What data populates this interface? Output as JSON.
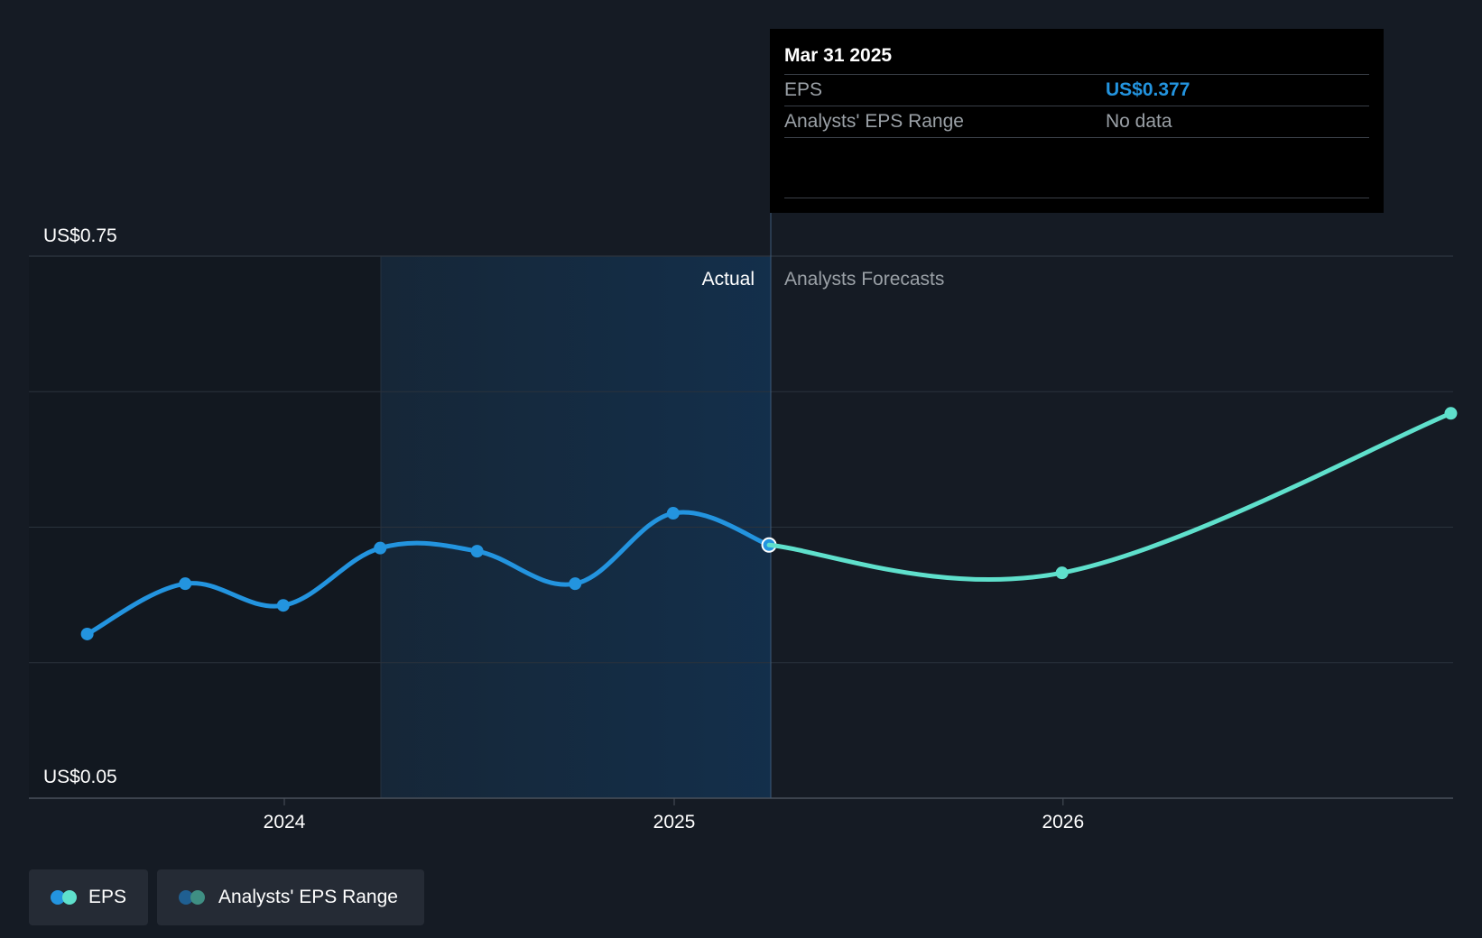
{
  "chart_data": {
    "type": "line",
    "y_labels": {
      "top": "US$0.75",
      "bottom": "US$0.05"
    },
    "ylim": [
      0.05,
      0.75
    ],
    "x_ticks": [
      "2024",
      "2025",
      "2026"
    ],
    "region_labels": {
      "actual": "Actual",
      "forecast": "Analysts Forecasts"
    },
    "grid": true,
    "series": [
      {
        "name": "EPS",
        "color": "#2394df",
        "points": [
          {
            "x": "2023-06-30",
            "y": 0.262
          },
          {
            "x": "2023-09-30",
            "y": 0.327
          },
          {
            "x": "2023-12-31",
            "y": 0.299
          },
          {
            "x": "2024-03-31",
            "y": 0.373
          },
          {
            "x": "2024-06-30",
            "y": 0.369
          },
          {
            "x": "2024-09-30",
            "y": 0.327
          },
          {
            "x": "2024-12-31",
            "y": 0.418
          },
          {
            "x": "2025-03-31",
            "y": 0.377
          }
        ]
      },
      {
        "name": "EPS forecast",
        "color": "#5fe0cc",
        "points": [
          {
            "x": "2025-03-31",
            "y": 0.377
          },
          {
            "x": "2025-12-31",
            "y": 0.341
          },
          {
            "x": "2026-12-31",
            "y": 0.547
          }
        ]
      }
    ]
  },
  "tooltip": {
    "date": "Mar 31 2025",
    "rows": [
      {
        "label": "EPS",
        "value": "US$0.377"
      },
      {
        "label": "Analysts' EPS Range",
        "value": "No data"
      }
    ]
  },
  "legend": [
    {
      "label": "EPS",
      "colors": [
        "#2394df",
        "#5fe0cc"
      ]
    },
    {
      "label": "Analysts' EPS Range",
      "colors": [
        "#1f5f91",
        "#3f8f83"
      ]
    }
  ]
}
